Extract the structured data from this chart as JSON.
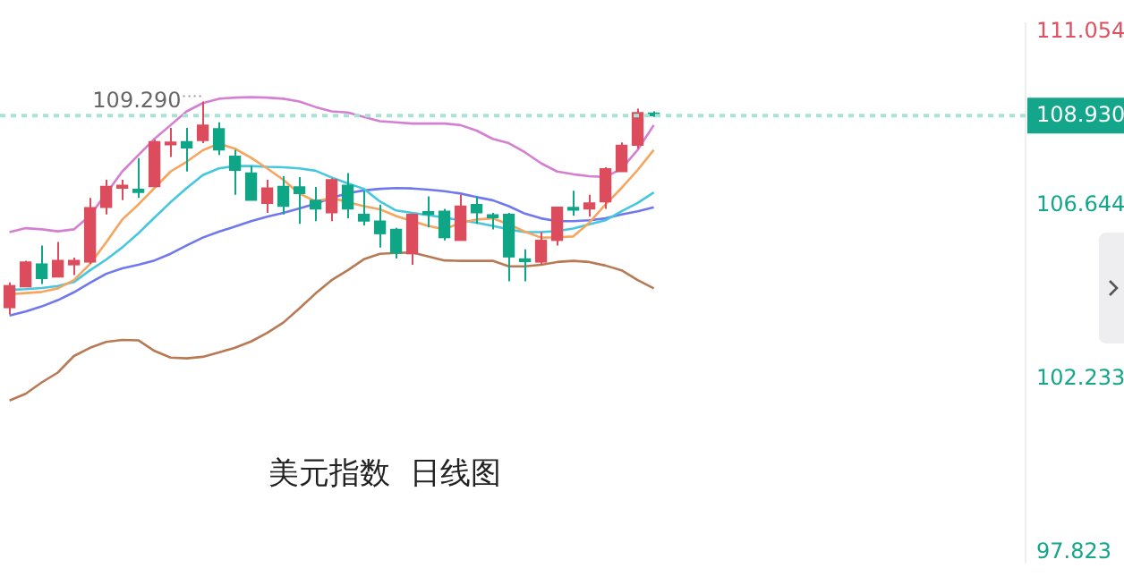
{
  "chart_data": {
    "type": "candlestick",
    "title": "美元指数  日线图",
    "categories": [
      null,
      null,
      null,
      null,
      null,
      null,
      null,
      null,
      null,
      null,
      null,
      null,
      null,
      null,
      null,
      null,
      null,
      null,
      null,
      null,
      null,
      null,
      null,
      null,
      null,
      null,
      null,
      null,
      null,
      null,
      null,
      null,
      null,
      null,
      null,
      null,
      null,
      null,
      null,
      null,
      null
    ],
    "ohlc": [
      [
        104.05,
        104.69,
        103.88,
        104.61
      ],
      [
        104.58,
        105.24,
        104.58,
        105.21
      ],
      [
        105.16,
        105.63,
        104.65,
        104.79
      ],
      [
        104.83,
        105.72,
        104.83,
        105.25
      ],
      [
        105.14,
        105.32,
        104.88,
        105.25
      ],
      [
        105.21,
        106.84,
        105.16,
        106.59
      ],
      [
        106.6,
        107.3,
        106.42,
        107.13
      ],
      [
        107.09,
        107.3,
        106.78,
        107.13
      ],
      [
        107.06,
        107.85,
        106.84,
        106.98
      ],
      [
        107.13,
        108.32,
        107.13,
        108.27
      ],
      [
        108.19,
        108.62,
        107.88,
        108.23
      ],
      [
        108.27,
        108.62,
        107.51,
        108.11
      ],
      [
        108.3,
        109.29,
        108.23,
        108.69
      ],
      [
        108.6,
        108.76,
        107.93,
        108.06
      ],
      [
        107.9,
        108.06,
        106.92,
        107.54
      ],
      [
        107.47,
        107.65,
        106.78,
        106.78
      ],
      [
        106.7,
        107.3,
        106.46,
        107.09
      ],
      [
        107.13,
        107.39,
        106.42,
        106.63
      ],
      [
        107.12,
        107.37,
        106.18,
        106.95
      ],
      [
        106.78,
        107.12,
        106.25,
        106.56
      ],
      [
        106.46,
        107.34,
        106.25,
        107.3
      ],
      [
        107.16,
        107.47,
        106.32,
        106.56
      ],
      [
        106.42,
        107.02,
        106.14,
        106.25
      ],
      [
        106.25,
        106.67,
        105.58,
        105.93
      ],
      [
        106.04,
        106.08,
        105.3,
        105.44
      ],
      [
        105.42,
        106.42,
        105.14,
        106.42
      ],
      [
        106.45,
        106.88,
        106.09,
        106.42
      ],
      [
        106.5,
        106.56,
        105.76,
        105.83
      ],
      [
        105.76,
        106.92,
        105.76,
        106.63
      ],
      [
        106.67,
        106.88,
        106.18,
        106.46
      ],
      [
        106.36,
        106.46,
        106.04,
        106.34
      ],
      [
        106.42,
        106.46,
        104.72,
        105.34
      ],
      [
        105.28,
        105.53,
        104.72,
        105.22
      ],
      [
        105.21,
        105.97,
        105.14,
        105.76
      ],
      [
        105.76,
        106.6,
        105.63,
        106.6
      ],
      [
        106.56,
        107.02,
        106.39,
        106.53
      ],
      [
        106.56,
        106.92,
        106.36,
        106.71
      ],
      [
        106.74,
        107.62,
        106.56,
        107.58
      ],
      [
        107.51,
        108.25,
        107.51,
        108.18
      ],
      [
        108.18,
        109.11,
        108.09,
        109.01
      ],
      [
        108.98,
        109.04,
        108.9,
        108.93
      ]
    ],
    "colors": [
      "#dc4c5c",
      "#dc4c5c",
      "#0fa688",
      "#dc4c5c",
      "#dc4c5c",
      "#dc4c5c",
      "#dc4c5c",
      "#dc4c5c",
      "#0fa688",
      "#dc4c5c",
      "#dc4c5c",
      "#0fa688",
      "#dc4c5c",
      "#0fa688",
      "#0fa688",
      "#0fa688",
      "#dc4c5c",
      "#0fa688",
      "#0fa688",
      "#0fa688",
      "#dc4c5c",
      "#0fa688",
      "#0fa688",
      "#0fa688",
      "#0fa688",
      "#dc4c5c",
      "#0fa688",
      "#0fa688",
      "#dc4c5c",
      "#0fa688",
      "#0fa688",
      "#0fa688",
      "#0fa688",
      "#dc4c5c",
      "#dc4c5c",
      "#0fa688",
      "#dc4c5c",
      "#dc4c5c",
      "#dc4c5c",
      "#dc4c5c",
      "#0fa688"
    ],
    "series": [
      {
        "type": "line",
        "color": "#d57fd3",
        "values": [
          105.97,
          106.07,
          106.04,
          105.99,
          106.04,
          106.39,
          106.95,
          107.51,
          107.93,
          108.34,
          108.69,
          109.04,
          109.25,
          109.36,
          109.39,
          109.4,
          109.39,
          109.36,
          109.29,
          109.15,
          109.04,
          109.01,
          108.9,
          108.79,
          108.76,
          108.73,
          108.73,
          108.73,
          108.69,
          108.55,
          108.34,
          108.23,
          108.0,
          107.72,
          107.51,
          107.44,
          107.39,
          107.37,
          107.58,
          108.06,
          108.69
        ]
      },
      {
        "type": "line",
        "color": "#b87a55",
        "values": [
          101.69,
          101.86,
          102.15,
          102.4,
          102.82,
          103.03,
          103.18,
          103.23,
          103.22,
          102.95,
          102.78,
          102.76,
          102.8,
          102.91,
          103.03,
          103.19,
          103.41,
          103.67,
          104.03,
          104.41,
          104.75,
          105.0,
          105.28,
          105.42,
          105.44,
          105.45,
          105.35,
          105.25,
          105.24,
          105.24,
          105.24,
          105.1,
          105.1,
          105.14,
          105.21,
          105.24,
          105.21,
          105.12,
          105.0,
          104.75,
          104.54
        ]
      },
      {
        "type": "line",
        "color": "#f6a55e",
        "values": [
          104.39,
          104.42,
          104.45,
          104.54,
          104.75,
          105.16,
          105.71,
          106.29,
          106.67,
          107.09,
          107.51,
          107.76,
          108.05,
          108.22,
          108.09,
          107.86,
          107.59,
          107.3,
          106.95,
          106.75,
          106.84,
          106.73,
          106.63,
          106.55,
          106.38,
          106.25,
          106.13,
          106.04,
          106.21,
          106.29,
          106.32,
          106.17,
          105.98,
          105.83,
          105.84,
          105.86,
          106.21,
          106.67,
          107.09,
          107.55,
          108.06
        ]
      },
      {
        "type": "line",
        "color": "#45c8de",
        "values": [
          104.5,
          104.52,
          104.55,
          104.6,
          104.7,
          105.0,
          105.27,
          105.58,
          105.94,
          106.34,
          106.73,
          107.09,
          107.42,
          107.59,
          107.65,
          107.65,
          107.63,
          107.62,
          107.59,
          107.53,
          107.36,
          107.21,
          107.07,
          106.75,
          106.52,
          106.46,
          106.4,
          106.34,
          106.27,
          106.21,
          106.13,
          106.04,
          105.97,
          105.97,
          106.0,
          106.06,
          106.17,
          106.27,
          106.5,
          106.71,
          106.98
        ]
      },
      {
        "type": "line",
        "color": "#6f78ee",
        "values": [
          103.85,
          103.95,
          104.08,
          104.24,
          104.44,
          104.68,
          104.91,
          105.05,
          105.14,
          105.25,
          105.42,
          105.63,
          105.83,
          105.98,
          106.11,
          106.25,
          106.36,
          106.46,
          106.57,
          106.69,
          106.84,
          106.96,
          107.03,
          107.07,
          107.09,
          107.08,
          107.05,
          107.01,
          106.95,
          106.86,
          106.78,
          106.63,
          106.44,
          106.32,
          106.25,
          106.25,
          106.27,
          106.32,
          106.42,
          106.5,
          106.6
        ]
      }
    ],
    "ylim": [
      97.6,
      111.27
    ],
    "yticks": [
      97.823,
      102.233,
      106.644,
      111.054
    ],
    "ref_lines": [
      {
        "axis": "y",
        "value": 108.93,
        "label": "108.930",
        "color": "#a8e3d8",
        "line_style": "dotted"
      }
    ],
    "annotations": [
      "109.290"
    ],
    "grid": false,
    "legend": false,
    "marker": "none",
    "line_style": "solid"
  }
}
